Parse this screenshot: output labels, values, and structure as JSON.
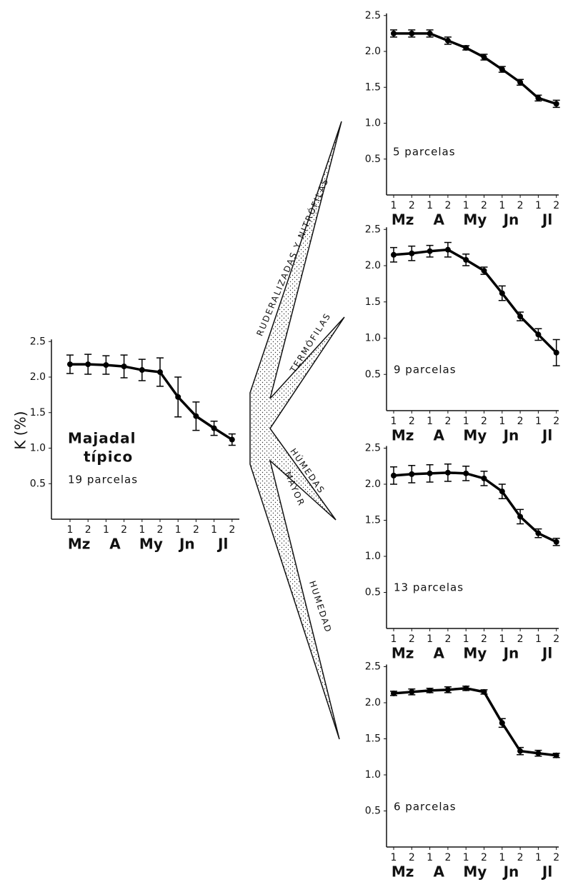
{
  "chart_data": [
    {
      "type": "line",
      "ylabel": "K (%)",
      "annotations": [
        "Majadal",
        "típico",
        "19 parcelas"
      ],
      "categories": [
        "1",
        "2",
        "1",
        "2",
        "1",
        "2",
        "1",
        "2",
        "1",
        "2"
      ],
      "groups": [
        "Mz",
        "A",
        "My",
        "Jn",
        "Jl"
      ],
      "ylim": [
        0,
        2.5
      ],
      "yticks": [
        0.5,
        {
          "value": 1,
          "label": "1.0"
        },
        1.5,
        {
          "value": 2,
          "label": "2.0"
        },
        2.5
      ],
      "color": "#000000",
      "values": [
        2.18,
        2.18,
        2.17,
        2.15,
        2.1,
        2.07,
        1.72,
        1.45,
        1.28,
        1.12
      ],
      "errors": [
        0.13,
        0.14,
        0.13,
        0.16,
        0.15,
        0.2,
        0.28,
        0.2,
        0.1,
        0.08
      ]
    },
    {
      "type": "line",
      "annotations": [
        "5 parcelas"
      ],
      "categories": [
        "1",
        "2",
        "1",
        "2",
        "1",
        "2",
        "1",
        "2",
        "1",
        "2"
      ],
      "groups": [
        "Mz",
        "A",
        "My",
        "Jn",
        "Jl"
      ],
      "ylim": [
        0,
        2.5
      ],
      "yticks": [
        0.5,
        {
          "value": 1,
          "label": "1.0"
        },
        1.5,
        {
          "value": 2,
          "label": "2.0"
        },
        2.5
      ],
      "color": "#000000",
      "values": [
        2.25,
        2.25,
        2.25,
        2.15,
        2.05,
        1.92,
        1.75,
        1.57,
        1.35,
        1.27
      ],
      "errors": [
        0.05,
        0.05,
        0.05,
        0.05,
        0.03,
        0.04,
        0.04,
        0.04,
        0.04,
        0.05
      ]
    },
    {
      "type": "line",
      "annotations": [
        "9 parcelas"
      ],
      "categories": [
        "1",
        "2",
        "1",
        "2",
        "1",
        "2",
        "1",
        "2",
        "1",
        "2"
      ],
      "groups": [
        "Mz",
        "A",
        "My",
        "Jn",
        "Jl"
      ],
      "ylim": [
        0,
        2.5
      ],
      "yticks": [
        0.5,
        {
          "value": 1,
          "label": "1.0"
        },
        1.5,
        {
          "value": 2,
          "label": "2.0"
        },
        2.5
      ],
      "color": "#000000",
      "values": [
        2.15,
        2.17,
        2.2,
        2.22,
        2.08,
        1.93,
        1.62,
        1.3,
        1.05,
        0.8
      ],
      "errors": [
        0.1,
        0.1,
        0.08,
        0.1,
        0.08,
        0.05,
        0.1,
        0.06,
        0.08,
        0.18
      ]
    },
    {
      "type": "line",
      "annotations": [
        "13 parcelas"
      ],
      "categories": [
        "1",
        "2",
        "1",
        "2",
        "1",
        "2",
        "1",
        "2",
        "1",
        "2"
      ],
      "groups": [
        "Mz",
        "A",
        "My",
        "Jn",
        "Jl"
      ],
      "ylim": [
        0,
        2.5
      ],
      "yticks": [
        0.5,
        {
          "value": 1,
          "label": "1.0"
        },
        1.5,
        {
          "value": 2,
          "label": "2.0"
        },
        2.5
      ],
      "color": "#000000",
      "values": [
        2.12,
        2.14,
        2.15,
        2.16,
        2.15,
        2.08,
        1.9,
        1.55,
        1.32,
        1.2
      ],
      "errors": [
        0.12,
        0.12,
        0.12,
        0.12,
        0.1,
        0.1,
        0.1,
        0.1,
        0.06,
        0.05
      ]
    },
    {
      "type": "line",
      "annotations": [
        "6 parcelas"
      ],
      "categories": [
        "1",
        "2",
        "1",
        "2",
        "1",
        "2",
        "1",
        "2",
        "1",
        "2"
      ],
      "groups": [
        "Mz",
        "A",
        "My",
        "Jn",
        "Jl"
      ],
      "ylim": [
        0,
        2.5
      ],
      "yticks": [
        0.5,
        {
          "value": 1,
          "label": "1.0"
        },
        1.5,
        {
          "value": 2,
          "label": "2.0"
        },
        2.5
      ],
      "color": "#000000",
      "values": [
        2.13,
        2.15,
        2.17,
        2.18,
        2.2,
        2.15,
        1.72,
        1.33,
        1.3,
        1.27
      ],
      "errors": [
        0.03,
        0.04,
        0.03,
        0.04,
        0.03,
        0.03,
        0.06,
        0.05,
        0.04,
        0.03
      ]
    }
  ],
  "diagram": {
    "labels": [
      "RUDERALIZADAS Y NITRÓFILAS",
      "TERMÓFILAS",
      "HÚMEDAS",
      "MAYOR",
      "HUMEDAD"
    ]
  }
}
